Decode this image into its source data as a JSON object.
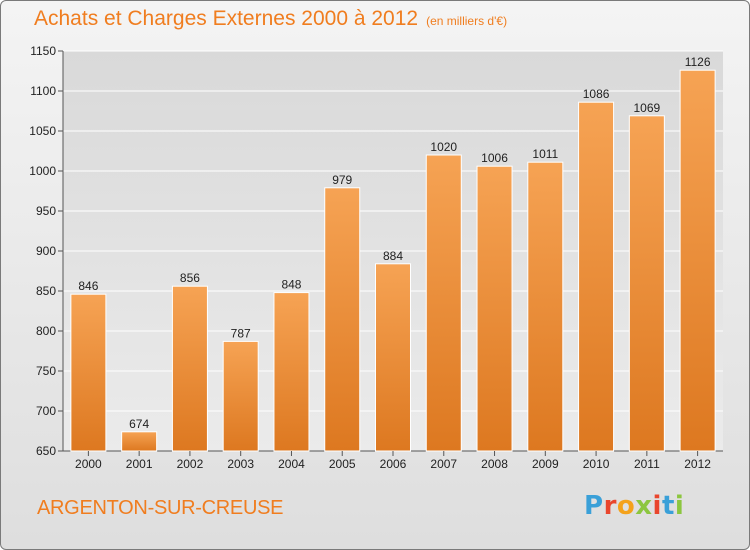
{
  "title": "Achats et Charges Externes 2000 à 2012",
  "unit_label": "(en milliers d'€)",
  "location": "ARGENTON-SUR-CREUSE",
  "logo": {
    "letters": [
      "P",
      "r",
      "o",
      "x",
      "i",
      "t",
      "i"
    ],
    "colors": [
      "#3aa0d8",
      "#e9462d",
      "#f4a21b",
      "#8cc63f",
      "#e9462d",
      "#3aa0d8",
      "#8cc63f"
    ]
  },
  "colors": {
    "accent": "#f07d1f",
    "bar_top": "#f6a354",
    "bar_bottom": "#dd7820",
    "grid": "#ffffff"
  },
  "chart_data": {
    "type": "bar",
    "categories": [
      "2000",
      "2001",
      "2002",
      "2003",
      "2004",
      "2005",
      "2006",
      "2007",
      "2008",
      "2009",
      "2010",
      "2011",
      "2012"
    ],
    "values": [
      846,
      674,
      856,
      787,
      848,
      979,
      884,
      1020,
      1006,
      1011,
      1086,
      1069,
      1126
    ],
    "title": "Achats et Charges Externes 2000 à 2012",
    "xlabel": "",
    "ylabel": "",
    "ylim": [
      650,
      1150
    ],
    "yticks": [
      650,
      700,
      750,
      800,
      850,
      900,
      950,
      1000,
      1050,
      1100,
      1150
    ],
    "grid": true,
    "data_labels": true
  }
}
